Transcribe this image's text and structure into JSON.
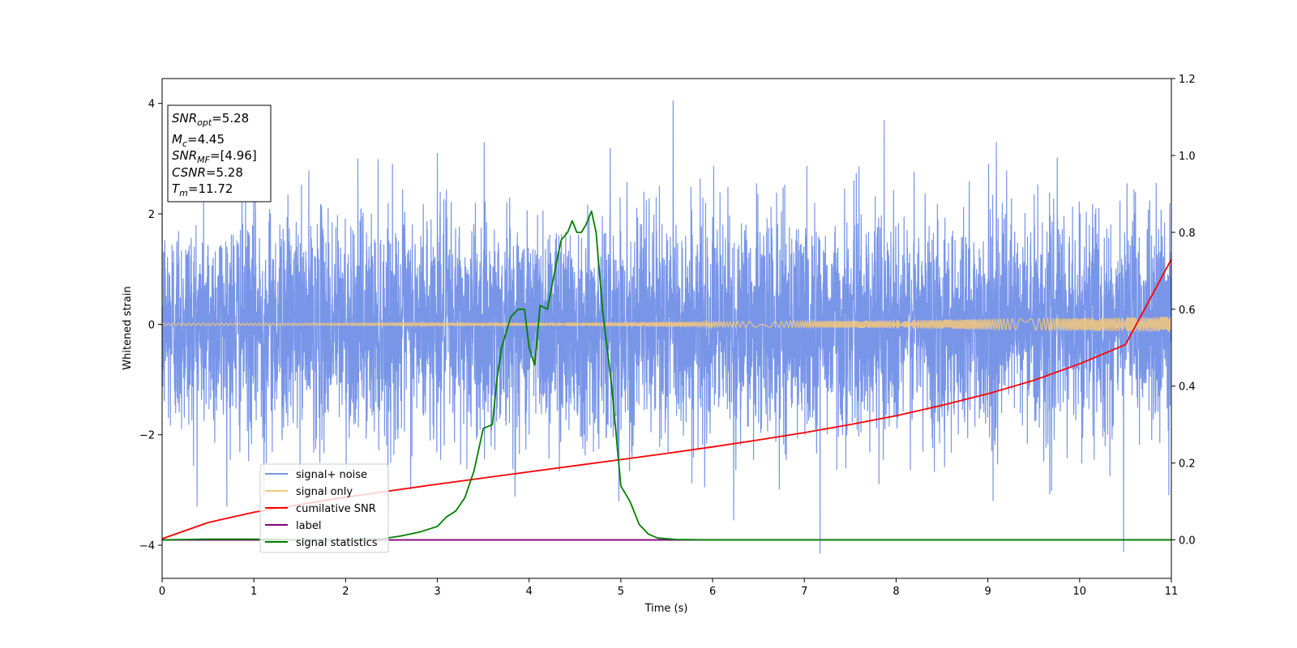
{
  "chart_data": {
    "type": "line",
    "title": "",
    "xlabel": "Time (s)",
    "ylabel": "Whitened strain",
    "y2label": "",
    "xlim": [
      0,
      11
    ],
    "ylim": [
      -4.6,
      4.45
    ],
    "y2lim": [
      -0.1,
      1.2
    ],
    "x_ticks": [
      "0",
      "1",
      "2",
      "3",
      "4",
      "5",
      "6",
      "7",
      "8",
      "9",
      "10",
      "11"
    ],
    "x_tick_values": [
      0,
      1,
      2,
      3,
      4,
      5,
      6,
      7,
      8,
      9,
      10,
      11
    ],
    "y_ticks": [
      "4",
      "2",
      "0",
      "−2",
      "−4"
    ],
    "y_tick_values": [
      4,
      2,
      0,
      -2,
      -4
    ],
    "y2_ticks": [
      "1.2",
      "1.0",
      "0.8",
      "0.6",
      "0.4",
      "0.2",
      "0.0"
    ],
    "y2_tick_values": [
      1.2,
      1.0,
      0.8,
      0.6,
      0.4,
      0.2,
      0.0
    ],
    "grid": false,
    "legend_position": "lower-left",
    "annotation": {
      "snr_opt_label": "SNR",
      "snr_opt_sub": "opt",
      "snr_opt_value": "=5.28",
      "mc_label": "M",
      "mc_sub": "c",
      "mc_value": "=4.45",
      "snr_mf_label": "SNR",
      "snr_mf_sub": "MF",
      "snr_mf_value": "=[4.96]",
      "csnr_label": "CSNR",
      "csnr_value": "=5.28",
      "tm_label": "T",
      "tm_sub": "m",
      "tm_value": "=11.72"
    },
    "series": [
      {
        "name": "signal+ noise",
        "color": "#7895e8",
        "axis": "left",
        "kind": "noise",
        "std": 0.95,
        "extreme_peaks": [
          [
            5.57,
            4.05
          ],
          [
            7.87,
            3.7
          ],
          [
            7.17,
            -4.15
          ],
          [
            10.48,
            -4.12
          ],
          [
            1.11,
            -3.1
          ],
          [
            3.0,
            3.1
          ],
          [
            6.23,
            -3.55
          ]
        ]
      },
      {
        "name": "signal only",
        "color": "#f5c87a",
        "axis": "left",
        "kind": "chirp",
        "amplitude_start": 0.02,
        "amplitude_end": 0.14
      },
      {
        "name": "cumilative SNR",
        "color": "#ff0000",
        "axis": "right",
        "x": [
          0,
          0.5,
          1,
          1.5,
          2,
          2.5,
          3,
          3.5,
          4,
          4.5,
          5,
          5.5,
          6,
          6.5,
          7,
          7.5,
          8,
          8.5,
          9,
          9.5,
          10,
          10.5,
          11
        ],
        "y": [
          0.003,
          0.045,
          0.072,
          0.092,
          0.111,
          0.128,
          0.145,
          0.161,
          0.177,
          0.193,
          0.209,
          0.225,
          0.242,
          0.26,
          0.279,
          0.3,
          0.323,
          0.35,
          0.38,
          0.415,
          0.458,
          0.508,
          0.73
        ]
      },
      {
        "name": "label",
        "color": "#800080",
        "axis": "right",
        "x": [
          0,
          11
        ],
        "y": [
          0.0,
          0.0
        ]
      },
      {
        "name": "signal statistics",
        "color": "#008000",
        "axis": "right",
        "x": [
          0,
          0.5,
          1,
          1.5,
          2,
          2.4,
          2.6,
          2.8,
          3.0,
          3.1,
          3.2,
          3.3,
          3.4,
          3.5,
          3.6,
          3.65,
          3.7,
          3.8,
          3.88,
          3.95,
          4.0,
          4.06,
          4.12,
          4.2,
          4.28,
          4.35,
          4.42,
          4.47,
          4.52,
          4.57,
          4.62,
          4.68,
          4.73,
          4.8,
          4.9,
          5.0,
          5.1,
          5.2,
          5.3,
          5.4,
          5.6,
          6.0,
          7.0,
          8.0,
          9.0,
          10.0,
          11.0
        ],
        "y": [
          0.0,
          0.002,
          0.002,
          0.0,
          0.0,
          0.003,
          0.01,
          0.02,
          0.035,
          0.06,
          0.075,
          0.11,
          0.18,
          0.29,
          0.3,
          0.42,
          0.5,
          0.58,
          0.6,
          0.6,
          0.5,
          0.455,
          0.61,
          0.6,
          0.7,
          0.78,
          0.8,
          0.83,
          0.8,
          0.8,
          0.82,
          0.855,
          0.8,
          0.6,
          0.4,
          0.14,
          0.1,
          0.04,
          0.015,
          0.005,
          0.001,
          0.0,
          0.0,
          0.0,
          0.0,
          0.0,
          0.0
        ]
      }
    ]
  }
}
